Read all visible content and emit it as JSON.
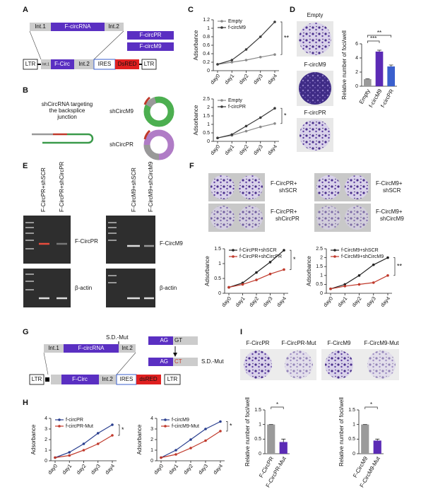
{
  "panels": {
    "A": {
      "label": "A",
      "top": [
        "Int.1",
        "F-circRNA",
        "Int.2"
      ],
      "variants": [
        "F-circPR",
        "F-circM9"
      ],
      "construct": [
        "LTR",
        "Int.1",
        "F-Circ",
        "Int.2",
        "IRES",
        "DsRED",
        "LTR"
      ]
    },
    "B": {
      "label": "B",
      "caption": [
        "shCircRNA targeting",
        "the backsplice",
        "junction"
      ],
      "targets": [
        "shCircM9",
        "shCircPR"
      ]
    },
    "C": {
      "label": "C"
    },
    "D": {
      "label": "D",
      "dishes": [
        "Empty",
        "F-circM9",
        "F-circPR"
      ]
    },
    "E": {
      "label": "E",
      "lanes_left": [
        "F-CircPR+shSCR",
        "F-CircPR+shCircPR"
      ],
      "bands_left": [
        "F-CircPR",
        "β-actin"
      ],
      "lanes_right": [
        "F-CircM9+shSCR",
        "F-CircM9+shCircM9"
      ],
      "bands_right": [
        "F-CircM9",
        "β-actin"
      ]
    },
    "F": {
      "label": "F",
      "plates": [
        [
          "F-CircPR+",
          "shSCR"
        ],
        [
          "F-CircPR+",
          "shCircPR"
        ],
        [
          "F-CircM9+",
          "shSCR"
        ],
        [
          "F-CircM9+",
          "shCircM9"
        ]
      ]
    },
    "G": {
      "label": "G",
      "top": [
        "Int.1",
        "F-circRNA",
        "Int.2"
      ],
      "mutation": "S.D.-Mut",
      "wild_site": [
        "AG",
        "GT"
      ],
      "mut_site": [
        "AG",
        "CT"
      ],
      "mut_label": "S.D.-Mut",
      "construct": [
        "LTR",
        "F-Circ",
        "Int.2",
        "IRES",
        "dsRED",
        "LTR"
      ]
    },
    "H": {
      "label": "H"
    },
    "I": {
      "label": "I",
      "dishes": [
        "F-CircPR",
        "F-CircPR-Mut",
        "F-CircM9",
        "F-CircM9-Mut"
      ]
    }
  },
  "chart_data": [
    {
      "type": "line",
      "categories": [
        "day0",
        "day1",
        "day2",
        "day3",
        "day4"
      ],
      "y_label": "Adsorbance",
      "ylim": [
        0,
        1.2
      ],
      "yticks": [
        0,
        0.2,
        0.4,
        0.6,
        0.8,
        1,
        1.2
      ],
      "annotation": "**",
      "series": [
        {
          "name": "Empty",
          "color": "#8a8a8a",
          "values": [
            0.15,
            0.2,
            0.25,
            0.32,
            0.38
          ]
        },
        {
          "name": "f-circM9",
          "color": "#3a3a3a",
          "values": [
            0.15,
            0.25,
            0.5,
            0.8,
            1.15
          ]
        }
      ]
    },
    {
      "type": "line",
      "categories": [
        "day0",
        "day1",
        "day2",
        "day3",
        "day4"
      ],
      "y_label": "Adsorbance",
      "ylim": [
        0,
        2.5
      ],
      "yticks": [
        0,
        0.5,
        1,
        1.5,
        2,
        2.5
      ],
      "annotation": "*",
      "series": [
        {
          "name": "Empty",
          "color": "#8a8a8a",
          "values": [
            0.2,
            0.35,
            0.6,
            0.85,
            1.05
          ]
        },
        {
          "name": "f-circPR",
          "color": "#3a3a3a",
          "values": [
            0.2,
            0.4,
            0.9,
            1.4,
            1.95
          ]
        }
      ]
    },
    {
      "type": "bar",
      "categories": [
        "Empty",
        "f-circM9",
        "f-circPR"
      ],
      "values": [
        1,
        4.9,
        2.8
      ],
      "errors": [
        0.05,
        0.2,
        0.2
      ],
      "colors": [
        "#9a9a9a",
        "#5b2bb5",
        "#3a5fcd"
      ],
      "y_label": "Relative number of foci/well",
      "ylim": [
        0,
        6
      ],
      "yticks": [
        0,
        2,
        4,
        6
      ],
      "annotations": [
        "***",
        "**"
      ]
    },
    {
      "type": "line",
      "categories": [
        "day0",
        "day1",
        "day2",
        "day3",
        "day4"
      ],
      "y_label": "Adsorbance",
      "ylim": [
        0,
        1.5
      ],
      "yticks": [
        0,
        0.5,
        1,
        1.5
      ],
      "annotation": "*",
      "series": [
        {
          "name": "f-CircPR+shSCR",
          "color": "#222222",
          "values": [
            0.2,
            0.35,
            0.7,
            1.05,
            1.45
          ]
        },
        {
          "name": "f-CircPR+shCircPR",
          "color": "#c0392b",
          "values": [
            0.2,
            0.3,
            0.45,
            0.65,
            0.8
          ]
        }
      ]
    },
    {
      "type": "line",
      "categories": [
        "day0",
        "day1",
        "day2",
        "day3",
        "day4"
      ],
      "y_label": "Adsorbance",
      "ylim": [
        0,
        2.5
      ],
      "yticks": [
        0,
        0.5,
        1,
        1.5,
        2,
        2.5
      ],
      "annotation": "**",
      "series": [
        {
          "name": "f-CircM9+shSCR",
          "color": "#222222",
          "values": [
            0.25,
            0.5,
            1.0,
            1.6,
            2.0
          ]
        },
        {
          "name": "f-CircM9+shCircM9",
          "color": "#c0392b",
          "values": [
            0.25,
            0.4,
            0.5,
            0.6,
            1.0
          ]
        }
      ]
    },
    {
      "type": "line",
      "categories": [
        "day0",
        "day1",
        "day2",
        "day3",
        "day4"
      ],
      "y_label": "Adsorbance",
      "ylim": [
        0,
        4
      ],
      "yticks": [
        0,
        1,
        2,
        3,
        4
      ],
      "annotation": "*",
      "series": [
        {
          "name": "f-circPR",
          "color": "#2a3f8f",
          "values": [
            0.3,
            0.8,
            1.6,
            2.6,
            3.4
          ]
        },
        {
          "name": "f-circPR-Mut",
          "color": "#c0392b",
          "values": [
            0.3,
            0.5,
            1.0,
            1.6,
            2.4
          ]
        }
      ]
    },
    {
      "type": "line",
      "categories": [
        "day0",
        "day1",
        "day2",
        "day3",
        "day4"
      ],
      "y_label": "Adsorbance",
      "ylim": [
        0,
        4
      ],
      "yticks": [
        0,
        1,
        2,
        3,
        4
      ],
      "annotation": "*",
      "series": [
        {
          "name": "f-circM9",
          "color": "#2a3f8f",
          "values": [
            0.3,
            1.0,
            2.0,
            3.0,
            3.7
          ]
        },
        {
          "name": "f-circM9-Mut",
          "color": "#c0392b",
          "values": [
            0.3,
            0.6,
            1.2,
            1.9,
            2.8
          ]
        }
      ]
    },
    {
      "type": "bar",
      "categories": [
        "F-CircPR",
        "F-CircPR-Mut"
      ],
      "values": [
        1,
        0.4
      ],
      "errors": [
        0,
        0.1
      ],
      "colors": [
        "#9a9a9a",
        "#5b2bb5"
      ],
      "y_label": "Relative number of foci/well",
      "ylim": [
        0,
        1.5
      ],
      "yticks": [
        0,
        0.5,
        1,
        1.5
      ],
      "annotations": [
        "*"
      ]
    },
    {
      "type": "bar",
      "categories": [
        "F-CircM9",
        "F-CircM9-Mut"
      ],
      "values": [
        1,
        0.45
      ],
      "errors": [
        0,
        0.05
      ],
      "colors": [
        "#9a9a9a",
        "#5b2bb5"
      ],
      "y_label": "Relative number of foci/well",
      "ylim": [
        0,
        1.5
      ],
      "yticks": [
        0,
        0.5,
        1,
        1.5
      ],
      "annotations": [
        "*"
      ]
    }
  ]
}
